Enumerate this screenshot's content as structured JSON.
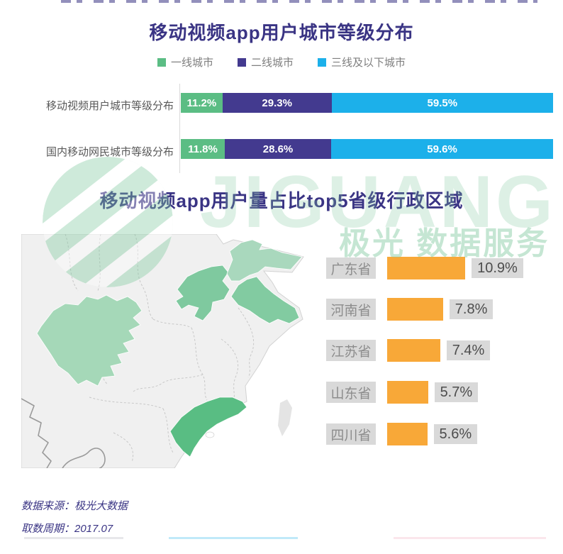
{
  "theme": {
    "title_color": "#3A3484",
    "text_gray": "#595959",
    "legend_gray": "#7F7F7F",
    "label_bg": "#D9D9D9",
    "label_text": "#8C8C8C",
    "value_text": "#4D4D4D",
    "footer_color": "#3A3484",
    "watermark_green": "#7FC99F"
  },
  "watermark": {
    "brand": "JIGUANG",
    "service": "极光 数据服务"
  },
  "footer": {
    "source": "数据来源：极光大数据",
    "period": "取数周期：2017.07"
  },
  "chart_data": [
    {
      "type": "bar",
      "variant": "horizontal-stacked",
      "title": "移动视频app用户城市等级分布",
      "categories": [
        "移动视频用户城市等级分布",
        "国内移动网民城市等级分布"
      ],
      "series": [
        {
          "name": "一线城市",
          "color": "#5BBD84",
          "values": [
            11.2,
            11.8
          ],
          "labels": [
            "11.2%",
            "11.8%"
          ]
        },
        {
          "name": "二线城市",
          "color": "#433A8F",
          "values": [
            29.3,
            28.6
          ],
          "labels": [
            "29.3%",
            "28.6%"
          ]
        },
        {
          "name": "三线及以下城市",
          "color": "#1CB0EA",
          "values": [
            59.5,
            59.6
          ],
          "labels": [
            "59.5%",
            "59.6%"
          ]
        }
      ],
      "unit": "%",
      "xlim": [
        0,
        100
      ],
      "legend_position": "top",
      "grid": false
    },
    {
      "type": "bar",
      "variant": "horizontal",
      "title": "移动视频app用户量占比top5省级行政区域",
      "categories": [
        "广东省",
        "河南省",
        "江苏省",
        "山东省",
        "四川省"
      ],
      "values": [
        10.9,
        7.8,
        7.4,
        5.7,
        5.6
      ],
      "labels": [
        "10.9%",
        "7.8%",
        "7.4%",
        "5.7%",
        "5.6%"
      ],
      "unit": "%",
      "bar_color": "#F8A838",
      "legend_position": "none",
      "grid": false,
      "map": {
        "region": "china-east",
        "guangdong": "#59BD83",
        "henan": "#7FC99F",
        "jiangsu": "#82CBA1",
        "shandong": "#A9D8BD",
        "sichuan": "#A5D8B8",
        "other_fill": "#F0F0F0",
        "taiwan_fill": "#E4E4E4"
      }
    }
  ]
}
